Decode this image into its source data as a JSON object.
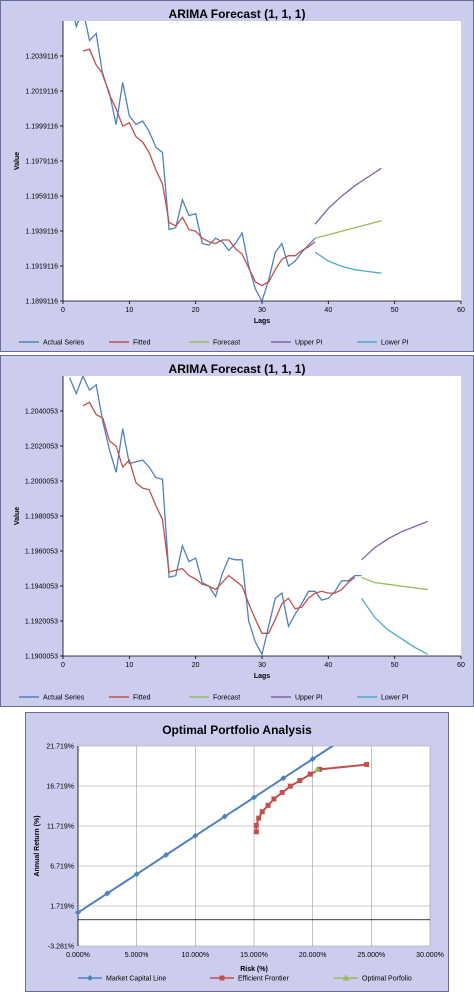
{
  "chart_data": [
    {
      "type": "line",
      "title": "ARIMA Forecast (1, 1, 1)",
      "xlabel": "Lags",
      "ylabel": "Value",
      "xlim": [
        0,
        60
      ],
      "ylim": [
        1.1899116,
        1.2059116
      ],
      "yticks": [
        "1.1899116",
        "1.1919116",
        "1.1939116",
        "1.1959116",
        "1.1979116",
        "1.1999116",
        "1.2019116",
        "1.2039116"
      ],
      "xticks": [
        "0",
        "10",
        "20",
        "30",
        "40",
        "50",
        "60"
      ],
      "grid": false,
      "legend_position": "bottom",
      "series": [
        {
          "name": "Actual Series",
          "color": "#4f81bd",
          "x": [
            1,
            2,
            3,
            4,
            5,
            6,
            7,
            8,
            9,
            10,
            11,
            12,
            13,
            14,
            15,
            16,
            17,
            18,
            19,
            20,
            21,
            22,
            23,
            24,
            25,
            26,
            27,
            28,
            29,
            30,
            31,
            32,
            33,
            34,
            35,
            36,
            37,
            38
          ],
          "y": [
            1.2072,
            1.2056,
            1.2066,
            1.2048,
            1.2052,
            1.2028,
            1.2018,
            1.2,
            1.2024,
            1.2005,
            1.2,
            1.2002,
            1.1996,
            1.1987,
            1.1984,
            1.194,
            1.1941,
            1.1957,
            1.1948,
            1.1949,
            1.1932,
            1.1931,
            1.1935,
            1.1933,
            1.1928,
            1.1932,
            1.1938,
            1.1919,
            1.1906,
            1.1899,
            1.1911,
            1.1927,
            1.1932,
            1.1919,
            1.1922,
            1.1927,
            1.1931,
            1.1935
          ]
        },
        {
          "name": "Fitted",
          "color": "#c0504d",
          "x": [
            3,
            4,
            5,
            6,
            7,
            8,
            9,
            10,
            11,
            12,
            13,
            14,
            15,
            16,
            17,
            18,
            19,
            20,
            21,
            22,
            23,
            24,
            25,
            26,
            27,
            28,
            29,
            30,
            31,
            32,
            33,
            34,
            35,
            36,
            37,
            38
          ],
          "y": [
            1.2042,
            1.2043,
            1.2034,
            1.2029,
            1.2017,
            1.2009,
            1.1999,
            1.2001,
            1.1993,
            1.199,
            1.1984,
            1.1974,
            1.1966,
            1.1944,
            1.1942,
            1.1947,
            1.194,
            1.1939,
            1.1935,
            1.1933,
            1.1932,
            1.1934,
            1.1934,
            1.1929,
            1.1926,
            1.1918,
            1.191,
            1.1908,
            1.191,
            1.1917,
            1.1923,
            1.1925,
            1.1925,
            1.1928,
            1.193,
            1.1933
          ]
        },
        {
          "name": "Forecast",
          "color": "#9bbb59",
          "x": [
            38,
            40,
            42,
            44,
            46,
            48
          ],
          "y": [
            1.1935,
            1.1937,
            1.1939,
            1.1941,
            1.1943,
            1.1945
          ]
        },
        {
          "name": "Upper PI",
          "color": "#8064a2",
          "x": [
            38,
            40,
            42,
            44,
            46,
            48
          ],
          "y": [
            1.1943,
            1.1952,
            1.1959,
            1.1965,
            1.197,
            1.1975
          ]
        },
        {
          "name": "Lower PI",
          "color": "#4bacc6",
          "x": [
            38,
            40,
            42,
            44,
            46,
            48
          ],
          "y": [
            1.1927,
            1.1922,
            1.1919,
            1.1917,
            1.1916,
            1.1915
          ]
        }
      ]
    },
    {
      "type": "line",
      "title": "ARIMA Forecast (1, 1, 1)",
      "xlabel": "Lags",
      "ylabel": "Value",
      "xlim": [
        0,
        60
      ],
      "ylim": [
        1.1900053,
        1.2060053
      ],
      "yticks": [
        "1.1900053",
        "1.1920053",
        "1.1940053",
        "1.1960053",
        "1.1980053",
        "1.2000053",
        "1.2020053",
        "1.2040053"
      ],
      "xticks": [
        "0",
        "10",
        "20",
        "30",
        "40",
        "50",
        "60"
      ],
      "grid": false,
      "legend_position": "bottom",
      "series": [
        {
          "name": "Actual Series",
          "color": "#4f81bd",
          "x": [
            1,
            2,
            3,
            4,
            5,
            6,
            7,
            8,
            9,
            10,
            11,
            12,
            13,
            14,
            15,
            16,
            17,
            18,
            19,
            20,
            21,
            22,
            23,
            24,
            25,
            26,
            27,
            28,
            29,
            30,
            31,
            32,
            33,
            34,
            35,
            36,
            37,
            38,
            39,
            40,
            41,
            42,
            43,
            44,
            45
          ],
          "y": [
            1.2059,
            1.205,
            1.206,
            1.2052,
            1.2055,
            1.2034,
            1.2018,
            1.2005,
            1.203,
            1.201,
            1.2011,
            1.2012,
            1.2008,
            1.2002,
            1.2001,
            1.1945,
            1.1946,
            1.1963,
            1.1954,
            1.1956,
            1.1942,
            1.194,
            1.1934,
            1.1947,
            1.1956,
            1.1955,
            1.1955,
            1.192,
            1.1908,
            1.1901,
            1.1917,
            1.1933,
            1.1936,
            1.1917,
            1.1924,
            1.193,
            1.1937,
            1.1937,
            1.1932,
            1.1933,
            1.1937,
            1.1943,
            1.1943,
            1.1946,
            1.1946
          ]
        },
        {
          "name": "Fitted",
          "color": "#c0504d",
          "x": [
            3,
            4,
            5,
            6,
            7,
            8,
            9,
            10,
            11,
            12,
            13,
            14,
            15,
            16,
            17,
            18,
            19,
            20,
            21,
            22,
            23,
            24,
            25,
            26,
            27,
            28,
            29,
            30,
            31,
            32,
            33,
            34,
            35,
            36,
            37,
            38,
            39,
            40,
            41,
            42,
            43,
            44
          ],
          "y": [
            1.2043,
            1.2045,
            1.2038,
            1.2036,
            1.2023,
            1.202,
            1.2008,
            1.2012,
            1.1999,
            1.1996,
            1.1995,
            1.1986,
            1.1978,
            1.1948,
            1.1949,
            1.195,
            1.1946,
            1.1944,
            1.1941,
            1.194,
            1.1938,
            1.1942,
            1.1946,
            1.1943,
            1.194,
            1.193,
            1.1921,
            1.1913,
            1.1913,
            1.1921,
            1.193,
            1.1933,
            1.1927,
            1.1928,
            1.1933,
            1.1936,
            1.1937,
            1.1936,
            1.1936,
            1.1938,
            1.1942,
            1.1945
          ]
        },
        {
          "name": "Forecast",
          "color": "#9bbb59",
          "x": [
            45,
            47,
            49,
            51,
            53,
            55
          ],
          "y": [
            1.1945,
            1.1942,
            1.1941,
            1.194,
            1.1939,
            1.1938
          ]
        },
        {
          "name": "Upper PI",
          "color": "#8064a2",
          "x": [
            45,
            47,
            49,
            51,
            53,
            55
          ],
          "y": [
            1.1955,
            1.1962,
            1.1967,
            1.1971,
            1.1974,
            1.1977
          ]
        },
        {
          "name": "Lower PI",
          "color": "#4bacc6",
          "x": [
            45,
            47,
            49,
            51,
            53,
            55
          ],
          "y": [
            1.1933,
            1.1922,
            1.1915,
            1.191,
            1.1905,
            1.1901
          ]
        }
      ]
    },
    {
      "type": "line",
      "title": "Optimal Portfolio Analysis",
      "xlabel": "Risk (%)",
      "ylabel": "Annual Return (%)",
      "xlim": [
        0,
        30
      ],
      "ylim": [
        -3.281,
        21.719
      ],
      "yticks": [
        "-3.281%",
        "1.719%",
        "6.719%",
        "11.719%",
        "16.719%",
        "21.719%"
      ],
      "yticks_values": [
        -3.281,
        1.719,
        6.719,
        11.719,
        16.719,
        21.719
      ],
      "xticks": [
        "0.000%",
        "5.000%",
        "10.000%",
        "15.000%",
        "20.000%",
        "25.000%",
        "30.000%"
      ],
      "xticks_values": [
        0,
        5,
        10,
        15,
        20,
        25,
        30
      ],
      "grid": true,
      "legend_position": "bottom",
      "series": [
        {
          "name": "Market Capital Line",
          "color": "#4f81bd",
          "marker": "diamond",
          "x": [
            0,
            2.5,
            5,
            7.5,
            10,
            12.5,
            15,
            17.5,
            20,
            22.5,
            24
          ],
          "y": [
            0.9,
            3.3,
            5.7,
            8.1,
            10.5,
            12.9,
            15.3,
            17.7,
            20.1,
            22.5,
            24.0
          ]
        },
        {
          "name": "Efficient Frontier",
          "color": "#c0504d",
          "marker": "square",
          "x": [
            15.2,
            15.2,
            15.4,
            15.7,
            16.2,
            16.7,
            17.4,
            18.1,
            18.9,
            19.8,
            20.6,
            24.6
          ],
          "y": [
            11.0,
            11.8,
            12.7,
            13.5,
            14.3,
            15.1,
            15.9,
            16.7,
            17.4,
            18.2,
            18.8,
            19.4
          ]
        },
        {
          "name": "Optimal Porfolio",
          "color": "#9bbb59",
          "marker": "triangle",
          "x": [
            20.4
          ],
          "y": [
            18.8
          ]
        }
      ]
    }
  ]
}
